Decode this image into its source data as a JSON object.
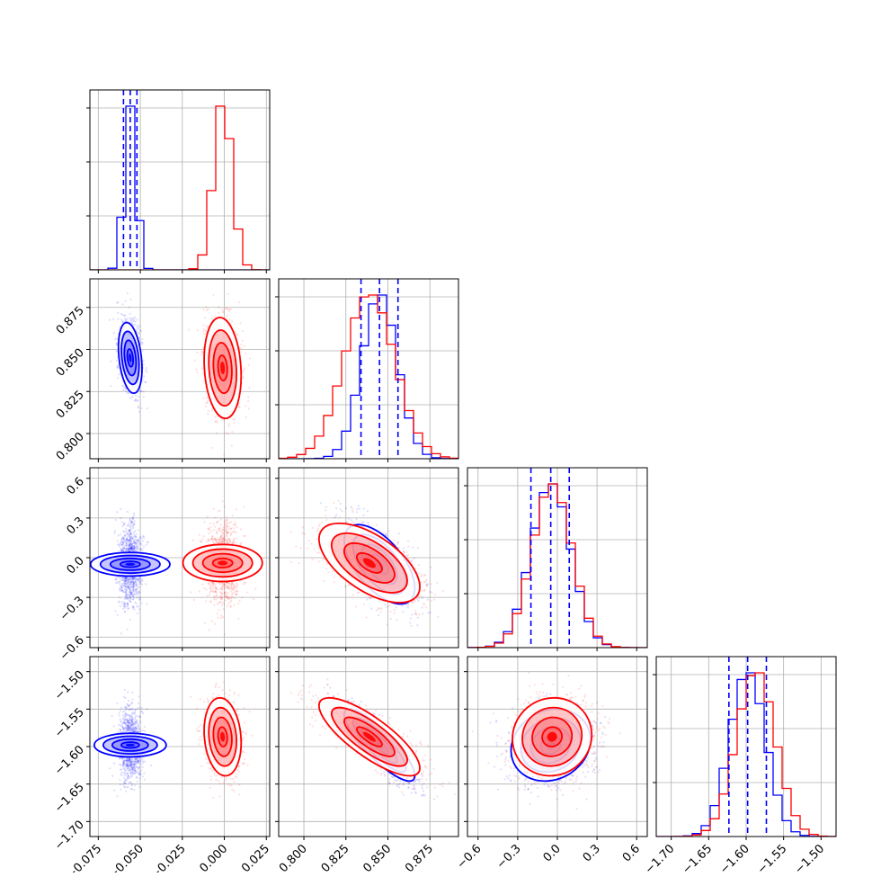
{
  "chart_data": {
    "type": "corner",
    "parameters": [
      {
        "range": [
          -0.08,
          0.027
        ],
        "ticks": [
          -0.075,
          -0.05,
          -0.025,
          0.0,
          0.025
        ],
        "tick_labels": [
          "−0.075",
          "−0.050",
          "−0.025",
          "0.000",
          "0.025"
        ]
      },
      {
        "range": [
          0.785,
          0.892
        ],
        "ticks": [
          0.8,
          0.825,
          0.85,
          0.875
        ],
        "tick_labels": [
          "0.800",
          "0.825",
          "0.850",
          "0.875"
        ]
      },
      {
        "range": [
          -0.68,
          0.68
        ],
        "ticks": [
          -0.6,
          -0.3,
          0.0,
          0.3,
          0.6
        ],
        "tick_labels": [
          "−0.6",
          "−0.3",
          "0.0",
          "0.3",
          "0.6"
        ]
      },
      {
        "range": [
          -1.72,
          -1.48
        ],
        "ticks": [
          -1.7,
          -1.65,
          -1.6,
          -1.55,
          -1.5
        ],
        "tick_labels": [
          "−1.70",
          "−1.65",
          "−1.60",
          "−1.55",
          "−1.50"
        ]
      }
    ],
    "series": [
      {
        "color": "#0000ff",
        "means": [
          -0.056,
          0.845,
          -0.05,
          -1.598
        ],
        "sigmas": [
          0.0035,
          0.0105,
          0.15,
          0.024
        ],
        "correlations": {
          "0-1": -0.3,
          "0-2": 0.0,
          "0-3": 0.0,
          "1-2": -0.6,
          "1-3": -0.85,
          "2-3": 0.15
        },
        "quantile_lines": [
          [
            -0.06,
            -0.056,
            -0.052
          ],
          [
            0.834,
            0.845,
            0.856
          ],
          [
            -0.2,
            -0.05,
            0.09
          ],
          [
            -1.623,
            -1.598,
            -1.573
          ]
        ]
      },
      {
        "color": "#ff0000",
        "means": [
          -0.001,
          0.839,
          -0.04,
          -1.587
        ],
        "sigmas": [
          0.0055,
          0.015,
          0.15,
          0.026
        ],
        "correlations": {
          "0-1": -0.15,
          "0-2": 0.0,
          "0-3": -0.15,
          "1-2": -0.6,
          "1-3": -0.8,
          "2-3": 0.05
        },
        "quantile_lines": null
      }
    ],
    "quantile_line_color": "#0000ff",
    "grid": true,
    "contour_levels": [
      0.118,
      0.393,
      0.675,
      0.865
    ]
  }
}
